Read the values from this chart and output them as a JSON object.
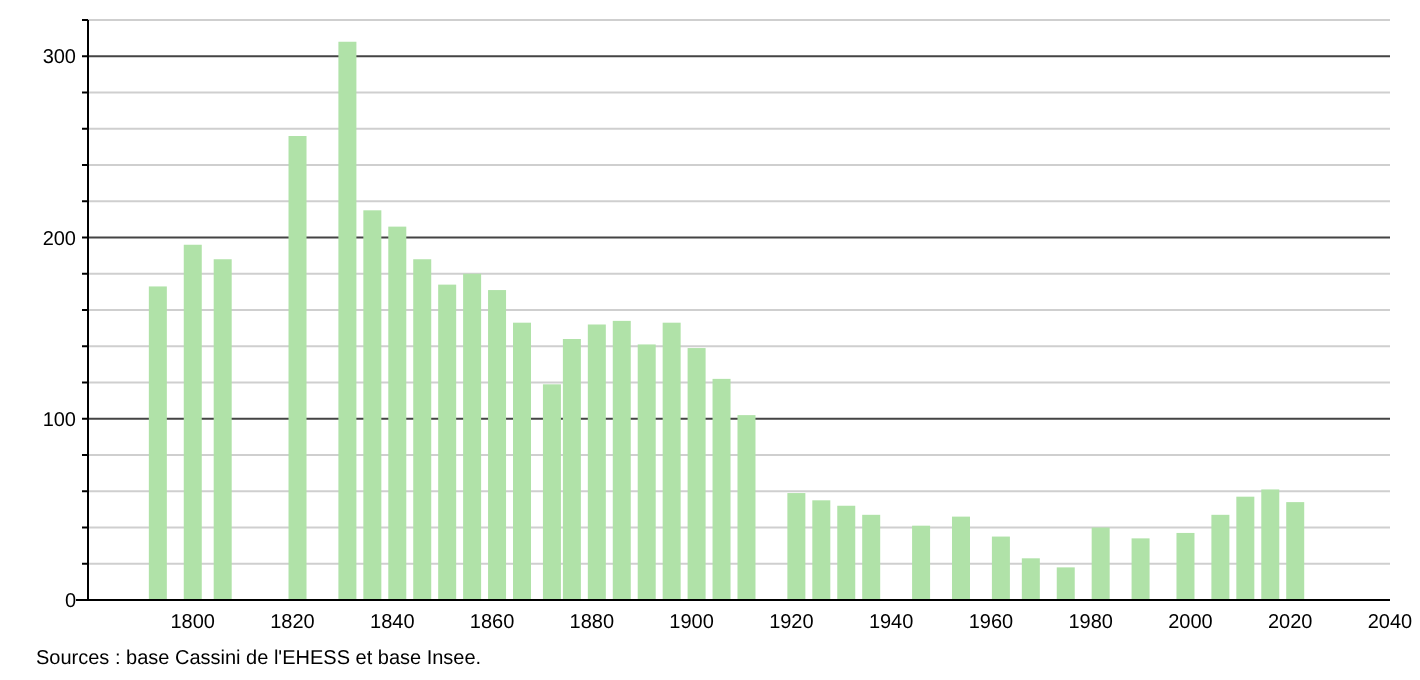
{
  "chart_data": {
    "type": "bar",
    "x": [
      1793,
      1800,
      1806,
      1821,
      1831,
      1836,
      1841,
      1846,
      1851,
      1856,
      1861,
      1866,
      1872,
      1876,
      1881,
      1886,
      1891,
      1896,
      1901,
      1906,
      1911,
      1921,
      1926,
      1931,
      1936,
      1946,
      1954,
      1962,
      1968,
      1975,
      1982,
      1990,
      1999,
      2006,
      2011,
      2016,
      2021
    ],
    "values": [
      173,
      196,
      188,
      256,
      308,
      215,
      206,
      188,
      174,
      180,
      171,
      153,
      119,
      144,
      152,
      154,
      141,
      153,
      139,
      122,
      102,
      59,
      55,
      52,
      47,
      41,
      46,
      35,
      23,
      18,
      40,
      34,
      37,
      47,
      57,
      61,
      54
    ],
    "color": "#b0e2a8",
    "xlim": [
      1779,
      2040
    ],
    "xticks": [
      1800,
      1820,
      1840,
      1860,
      1880,
      1900,
      1920,
      1940,
      1960,
      1980,
      2000,
      2020,
      2040
    ],
    "ylim": [
      0,
      320
    ],
    "yticks": [
      0,
      {
        "value": 20,
        "label": null
      },
      {
        "value": 40,
        "label": null
      },
      {
        "value": 60,
        "label": null
      },
      {
        "value": 80,
        "label": null
      },
      100,
      {
        "value": 120,
        "label": null
      },
      {
        "value": 140,
        "label": null
      },
      {
        "value": 160,
        "label": null
      },
      {
        "value": 180,
        "label": null
      },
      200,
      {
        "value": 220,
        "label": null
      },
      {
        "value": 240,
        "label": null
      },
      {
        "value": 260,
        "label": null
      },
      {
        "value": 280,
        "label": null
      },
      300,
      {
        "value": 320,
        "label": null
      }
    ],
    "grid": "y",
    "annotations": [
      "Sources : base Cassini de l'EHESS et base Insee."
    ]
  }
}
